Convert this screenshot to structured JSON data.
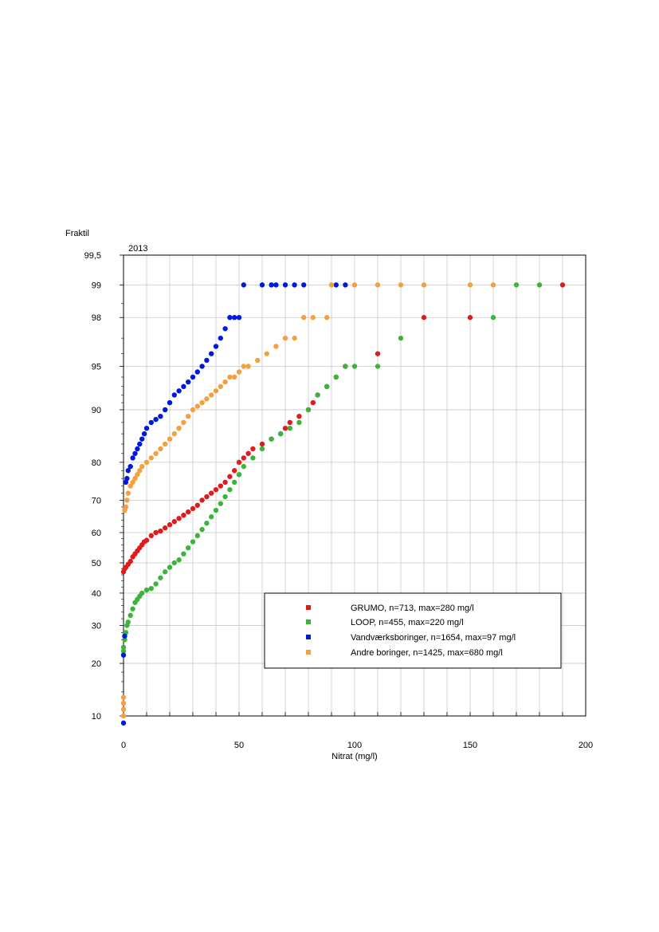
{
  "chart_data": {
    "type": "scatter",
    "title": "",
    "panel_label": "2013",
    "ylabel": "Fraktil",
    "xlabel": "Nitrat (mg/l)",
    "y_scale": "probability",
    "xlim": [
      0,
      200
    ],
    "ylim": [
      10,
      99.5
    ],
    "x_ticks": [
      0,
      50,
      100,
      150,
      200
    ],
    "x_tick_labels": [
      "0",
      "50",
      "100",
      "150",
      "200"
    ],
    "y_ticks": [
      10,
      20,
      30,
      40,
      50,
      60,
      70,
      80,
      90,
      95,
      98,
      99,
      99.5
    ],
    "y_tick_labels": [
      "10",
      "20",
      "30",
      "40",
      "50",
      "60",
      "70",
      "80",
      "90",
      "95",
      "98",
      "99",
      "99,5"
    ],
    "grid": true,
    "legend_position": "lower-right",
    "series": [
      {
        "name": "GRUMO, n=713, max=280 mg/l",
        "color": "#e31a1c",
        "points": [
          [
            0,
            47
          ],
          [
            0.5,
            48
          ],
          [
            1,
            48.5
          ],
          [
            2,
            49.5
          ],
          [
            3,
            50.5
          ],
          [
            4,
            52
          ],
          [
            5,
            53
          ],
          [
            6,
            54
          ],
          [
            7,
            55
          ],
          [
            8,
            56
          ],
          [
            9,
            57
          ],
          [
            10,
            57.5
          ],
          [
            12,
            59
          ],
          [
            14,
            60
          ],
          [
            16,
            60.5
          ],
          [
            18,
            61.5
          ],
          [
            20,
            62.5
          ],
          [
            22,
            63.5
          ],
          [
            24,
            64.5
          ],
          [
            26,
            65.5
          ],
          [
            28,
            66.5
          ],
          [
            30,
            67.5
          ],
          [
            32,
            68.5
          ],
          [
            34,
            70
          ],
          [
            36,
            71
          ],
          [
            38,
            72
          ],
          [
            40,
            73
          ],
          [
            42,
            74
          ],
          [
            44,
            75
          ],
          [
            46,
            76.5
          ],
          [
            48,
            78
          ],
          [
            50,
            80
          ],
          [
            52,
            81
          ],
          [
            54,
            82
          ],
          [
            56,
            83
          ],
          [
            60,
            84
          ],
          [
            64,
            85
          ],
          [
            68,
            86
          ],
          [
            70,
            87
          ],
          [
            72,
            88
          ],
          [
            76,
            89
          ],
          [
            80,
            90
          ],
          [
            82,
            91
          ],
          [
            84,
            92
          ],
          [
            88,
            93
          ],
          [
            92,
            94
          ],
          [
            96,
            95
          ],
          [
            110,
            96
          ],
          [
            130,
            98
          ],
          [
            150,
            98
          ],
          [
            190,
            99
          ]
        ]
      },
      {
        "name": "LOOP, n=455, max=220 mg/l",
        "color": "#3cb43c",
        "points": [
          [
            0,
            23
          ],
          [
            0,
            24
          ],
          [
            0.5,
            26
          ],
          [
            1,
            28
          ],
          [
            1.5,
            30
          ],
          [
            2,
            31
          ],
          [
            3,
            33
          ],
          [
            4,
            35
          ],
          [
            5,
            37
          ],
          [
            6,
            38
          ],
          [
            7,
            39
          ],
          [
            8,
            40
          ],
          [
            10,
            41
          ],
          [
            12,
            41.5
          ],
          [
            14,
            43
          ],
          [
            16,
            45
          ],
          [
            18,
            47
          ],
          [
            20,
            48.5
          ],
          [
            22,
            50
          ],
          [
            24,
            51
          ],
          [
            26,
            53
          ],
          [
            28,
            55
          ],
          [
            30,
            57
          ],
          [
            32,
            59
          ],
          [
            34,
            61
          ],
          [
            36,
            63
          ],
          [
            38,
            65
          ],
          [
            40,
            67
          ],
          [
            42,
            69
          ],
          [
            44,
            71
          ],
          [
            46,
            73
          ],
          [
            48,
            75
          ],
          [
            50,
            77
          ],
          [
            52,
            79
          ],
          [
            56,
            81
          ],
          [
            60,
            83
          ],
          [
            64,
            85
          ],
          [
            68,
            86
          ],
          [
            72,
            87
          ],
          [
            76,
            88
          ],
          [
            80,
            90
          ],
          [
            84,
            92
          ],
          [
            88,
            93
          ],
          [
            92,
            94
          ],
          [
            96,
            95
          ],
          [
            100,
            95
          ],
          [
            110,
            95
          ],
          [
            120,
            97
          ],
          [
            160,
            98
          ],
          [
            170,
            99
          ],
          [
            180,
            99
          ]
        ]
      },
      {
        "name": "Vandværksboringer, n=1654, max=97 mg/l",
        "color": "#0018e0",
        "points": [
          [
            0,
            9
          ],
          [
            0,
            22
          ],
          [
            0.5,
            27
          ],
          [
            1,
            75
          ],
          [
            1.5,
            76
          ],
          [
            2,
            78
          ],
          [
            3,
            79
          ],
          [
            4,
            81
          ],
          [
            5,
            82
          ],
          [
            6,
            83
          ],
          [
            7,
            84
          ],
          [
            8,
            85
          ],
          [
            9,
            86
          ],
          [
            10,
            87
          ],
          [
            12,
            88
          ],
          [
            14,
            88.5
          ],
          [
            16,
            89
          ],
          [
            18,
            90
          ],
          [
            20,
            91
          ],
          [
            22,
            92
          ],
          [
            24,
            92.5
          ],
          [
            26,
            93
          ],
          [
            28,
            93.5
          ],
          [
            30,
            94
          ],
          [
            32,
            94.5
          ],
          [
            34,
            95
          ],
          [
            36,
            95.5
          ],
          [
            38,
            96
          ],
          [
            40,
            96.5
          ],
          [
            42,
            97
          ],
          [
            44,
            97.5
          ],
          [
            46,
            98
          ],
          [
            48,
            98
          ],
          [
            50,
            98
          ],
          [
            52,
            99
          ],
          [
            60,
            99
          ],
          [
            64,
            99
          ],
          [
            66,
            99
          ],
          [
            70,
            99
          ],
          [
            74,
            99
          ],
          [
            78,
            99
          ],
          [
            92,
            99
          ],
          [
            96,
            99
          ]
        ]
      },
      {
        "name": "Andre boringer, n=1425, max=680 mg/l",
        "color": "#f5a040",
        "points": [
          [
            0,
            10
          ],
          [
            0,
            11
          ],
          [
            0,
            12
          ],
          [
            0,
            13
          ],
          [
            0.5,
            67
          ],
          [
            1,
            68
          ],
          [
            1.5,
            70
          ],
          [
            2,
            72
          ],
          [
            3,
            74
          ],
          [
            4,
            75
          ],
          [
            5,
            76
          ],
          [
            6,
            77
          ],
          [
            7,
            78
          ],
          [
            8,
            79
          ],
          [
            10,
            80
          ],
          [
            12,
            81
          ],
          [
            14,
            82
          ],
          [
            16,
            83
          ],
          [
            18,
            84
          ],
          [
            20,
            85
          ],
          [
            22,
            86
          ],
          [
            24,
            87
          ],
          [
            26,
            88
          ],
          [
            28,
            89
          ],
          [
            30,
            90
          ],
          [
            32,
            90.5
          ],
          [
            34,
            91
          ],
          [
            36,
            91.5
          ],
          [
            38,
            92
          ],
          [
            40,
            92.5
          ],
          [
            42,
            93
          ],
          [
            44,
            93.5
          ],
          [
            46,
            94
          ],
          [
            48,
            94
          ],
          [
            50,
            94.5
          ],
          [
            52,
            95
          ],
          [
            54,
            95
          ],
          [
            58,
            95.5
          ],
          [
            62,
            96
          ],
          [
            66,
            96.5
          ],
          [
            70,
            97
          ],
          [
            74,
            97
          ],
          [
            78,
            98
          ],
          [
            82,
            98
          ],
          [
            88,
            98
          ],
          [
            90,
            99
          ],
          [
            100,
            99
          ],
          [
            110,
            99
          ],
          [
            120,
            99
          ],
          [
            130,
            99
          ],
          [
            150,
            99
          ],
          [
            160,
            99
          ]
        ]
      }
    ]
  }
}
